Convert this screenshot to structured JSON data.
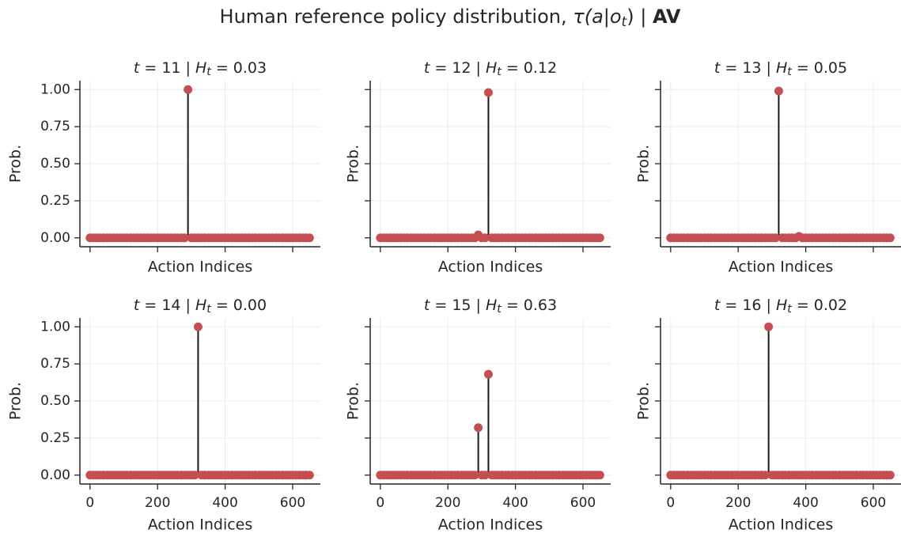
{
  "title": [
    "Human reference policy distribution, ",
    "τ(a|o",
    "t",
    ") | ",
    "AV"
  ],
  "chart_data": [
    {
      "type": "stem",
      "title": [
        "t",
        " =  11 | ",
        "H",
        "t",
        " = 0.03"
      ],
      "xlabel": "Action Indices",
      "ylabel": "Prob.",
      "x": [
        0,
        10,
        20,
        30,
        40,
        50,
        60,
        70,
        80,
        90,
        100,
        110,
        120,
        130,
        140,
        150,
        160,
        170,
        180,
        190,
        200,
        210,
        220,
        230,
        240,
        250,
        260,
        270,
        280,
        290,
        300,
        310,
        320,
        330,
        340,
        350,
        360,
        370,
        380,
        390,
        400,
        410,
        420,
        430,
        440,
        450,
        460,
        470,
        480,
        490,
        500,
        510,
        520,
        530,
        540,
        550,
        560,
        570,
        580,
        590,
        600,
        610,
        620,
        630,
        640,
        650
      ],
      "values": [
        0,
        0,
        0,
        0,
        0,
        0,
        0,
        0,
        0,
        0,
        0,
        0,
        0,
        0,
        0,
        0,
        0,
        0,
        0,
        0,
        0,
        0,
        0,
        0,
        0,
        0,
        0,
        0,
        0,
        1.0,
        0,
        0,
        0,
        0,
        0,
        0,
        0,
        0,
        0,
        0,
        0,
        0,
        0,
        0,
        0,
        0,
        0,
        0,
        0,
        0,
        0,
        0,
        0,
        0,
        0,
        0,
        0,
        0,
        0,
        0,
        0,
        0,
        0,
        0,
        0,
        0
      ],
      "color": "#c44e52",
      "stem_color": "#1a1a1a",
      "xlim": [
        -30,
        682
      ],
      "ylim": [
        -0.06,
        1.06
      ],
      "xticks": [
        0,
        200,
        400,
        600
      ],
      "yticks": [
        {
          "value": 0,
          "label": "0.00"
        },
        {
          "value": 0.25,
          "label": "0.25"
        },
        {
          "value": 0.5,
          "label": "0.50"
        },
        {
          "value": 0.75,
          "label": "0.75"
        },
        {
          "value": 1,
          "label": "1.00"
        }
      ],
      "grid": true,
      "x_tick_labels": false,
      "y_tick_labels": true
    },
    {
      "type": "stem",
      "title": [
        "t",
        " =  12 | ",
        "H",
        "t",
        " = 0.12"
      ],
      "xlabel": "Action Indices",
      "ylabel": "Prob.",
      "x": [
        0,
        10,
        20,
        30,
        40,
        50,
        60,
        70,
        80,
        90,
        100,
        110,
        120,
        130,
        140,
        150,
        160,
        170,
        180,
        190,
        200,
        210,
        220,
        230,
        240,
        250,
        260,
        270,
        280,
        290,
        300,
        310,
        320,
        330,
        340,
        350,
        360,
        370,
        380,
        390,
        400,
        410,
        420,
        430,
        440,
        450,
        460,
        470,
        480,
        490,
        500,
        510,
        520,
        530,
        540,
        550,
        560,
        570,
        580,
        590,
        600,
        610,
        620,
        630,
        640,
        650
      ],
      "values": [
        0,
        0,
        0,
        0,
        0,
        0,
        0,
        0,
        0,
        0,
        0,
        0,
        0,
        0,
        0,
        0,
        0,
        0,
        0,
        0,
        0,
        0,
        0,
        0,
        0,
        0,
        0,
        0,
        0,
        0.02,
        0,
        0,
        0.98,
        0,
        0,
        0,
        0,
        0,
        0,
        0,
        0,
        0,
        0,
        0,
        0,
        0,
        0,
        0,
        0,
        0,
        0,
        0,
        0,
        0,
        0,
        0,
        0,
        0,
        0,
        0,
        0,
        0,
        0,
        0,
        0,
        0
      ],
      "color": "#c44e52",
      "stem_color": "#1a1a1a",
      "xlim": [
        -30,
        682
      ],
      "ylim": [
        -0.06,
        1.06
      ],
      "xticks": [
        0,
        200,
        400,
        600
      ],
      "yticks": [
        0,
        0.25,
        0.5,
        0.75,
        1
      ],
      "grid": true,
      "x_tick_labels": false,
      "y_tick_labels": false
    },
    {
      "type": "stem",
      "title": [
        "t",
        " =  13 | ",
        "H",
        "t",
        " = 0.05"
      ],
      "xlabel": "Action Indices",
      "ylabel": "Prob.",
      "x": [
        0,
        10,
        20,
        30,
        40,
        50,
        60,
        70,
        80,
        90,
        100,
        110,
        120,
        130,
        140,
        150,
        160,
        170,
        180,
        190,
        200,
        210,
        220,
        230,
        240,
        250,
        260,
        270,
        280,
        290,
        300,
        310,
        320,
        330,
        340,
        350,
        360,
        370,
        380,
        390,
        400,
        410,
        420,
        430,
        440,
        450,
        460,
        470,
        480,
        490,
        500,
        510,
        520,
        530,
        540,
        550,
        560,
        570,
        580,
        590,
        600,
        610,
        620,
        630,
        640,
        650
      ],
      "values": [
        0,
        0,
        0,
        0,
        0,
        0,
        0,
        0,
        0,
        0,
        0,
        0,
        0,
        0,
        0,
        0,
        0,
        0,
        0,
        0,
        0,
        0,
        0,
        0,
        0,
        0,
        0,
        0,
        0,
        0,
        0,
        0,
        0.99,
        0,
        0,
        0,
        0,
        0,
        0.01,
        0,
        0,
        0,
        0,
        0,
        0,
        0,
        0,
        0,
        0,
        0,
        0,
        0,
        0,
        0,
        0,
        0,
        0,
        0,
        0,
        0,
        0,
        0,
        0,
        0,
        0,
        0
      ],
      "color": "#c44e52",
      "stem_color": "#1a1a1a",
      "xlim": [
        -30,
        682
      ],
      "ylim": [
        -0.06,
        1.06
      ],
      "xticks": [
        0,
        200,
        400,
        600
      ],
      "yticks": [
        0,
        0.25,
        0.5,
        0.75,
        1
      ],
      "grid": true,
      "x_tick_labels": false,
      "y_tick_labels": false
    },
    {
      "type": "stem",
      "title": [
        "t",
        " =  14 | ",
        "H",
        "t",
        " = 0.00"
      ],
      "xlabel": "Action Indices",
      "ylabel": "Prob.",
      "x": [
        0,
        10,
        20,
        30,
        40,
        50,
        60,
        70,
        80,
        90,
        100,
        110,
        120,
        130,
        140,
        150,
        160,
        170,
        180,
        190,
        200,
        210,
        220,
        230,
        240,
        250,
        260,
        270,
        280,
        290,
        300,
        310,
        320,
        330,
        340,
        350,
        360,
        370,
        380,
        390,
        400,
        410,
        420,
        430,
        440,
        450,
        460,
        470,
        480,
        490,
        500,
        510,
        520,
        530,
        540,
        550,
        560,
        570,
        580,
        590,
        600,
        610,
        620,
        630,
        640,
        650
      ],
      "values": [
        0,
        0,
        0,
        0,
        0,
        0,
        0,
        0,
        0,
        0,
        0,
        0,
        0,
        0,
        0,
        0,
        0,
        0,
        0,
        0,
        0,
        0,
        0,
        0,
        0,
        0,
        0,
        0,
        0,
        0,
        0,
        0,
        1.0,
        0,
        0,
        0,
        0,
        0,
        0,
        0,
        0,
        0,
        0,
        0,
        0,
        0,
        0,
        0,
        0,
        0,
        0,
        0,
        0,
        0,
        0,
        0,
        0,
        0,
        0,
        0,
        0,
        0,
        0,
        0,
        0,
        0
      ],
      "color": "#c44e52",
      "stem_color": "#1a1a1a",
      "xlim": [
        -30,
        682
      ],
      "ylim": [
        -0.06,
        1.06
      ],
      "xticks": [
        0,
        200,
        400,
        600
      ],
      "yticks": [
        {
          "value": 0,
          "label": "0.00"
        },
        {
          "value": 0.25,
          "label": "0.25"
        },
        {
          "value": 0.5,
          "label": "0.50"
        },
        {
          "value": 0.75,
          "label": "0.75"
        },
        {
          "value": 1,
          "label": "1.00"
        }
      ],
      "grid": true,
      "x_tick_labels": true,
      "y_tick_labels": true
    },
    {
      "type": "stem",
      "title": [
        "t",
        " =  15 | ",
        "H",
        "t",
        " = 0.63"
      ],
      "xlabel": "Action Indices",
      "ylabel": "Prob.",
      "x": [
        0,
        10,
        20,
        30,
        40,
        50,
        60,
        70,
        80,
        90,
        100,
        110,
        120,
        130,
        140,
        150,
        160,
        170,
        180,
        190,
        200,
        210,
        220,
        230,
        240,
        250,
        260,
        270,
        280,
        290,
        300,
        310,
        320,
        330,
        340,
        350,
        360,
        370,
        380,
        390,
        400,
        410,
        420,
        430,
        440,
        450,
        460,
        470,
        480,
        490,
        500,
        510,
        520,
        530,
        540,
        550,
        560,
        570,
        580,
        590,
        600,
        610,
        620,
        630,
        640,
        650
      ],
      "values": [
        0,
        0,
        0,
        0,
        0,
        0,
        0,
        0,
        0,
        0,
        0,
        0,
        0,
        0,
        0,
        0,
        0,
        0,
        0,
        0,
        0,
        0,
        0,
        0,
        0,
        0,
        0,
        0,
        0,
        0.32,
        0,
        0,
        0.68,
        0,
        0,
        0,
        0,
        0,
        0,
        0,
        0,
        0,
        0,
        0,
        0,
        0,
        0,
        0,
        0,
        0,
        0,
        0,
        0,
        0,
        0,
        0,
        0,
        0,
        0,
        0,
        0,
        0,
        0,
        0,
        0,
        0
      ],
      "color": "#c44e52",
      "stem_color": "#1a1a1a",
      "xlim": [
        -30,
        682
      ],
      "ylim": [
        -0.06,
        1.06
      ],
      "xticks": [
        0,
        200,
        400,
        600
      ],
      "yticks": [
        0,
        0.25,
        0.5,
        0.75,
        1
      ],
      "grid": true,
      "x_tick_labels": true,
      "y_tick_labels": false
    },
    {
      "type": "stem",
      "title": [
        "t",
        " =  16 | ",
        "H",
        "t",
        " = 0.02"
      ],
      "xlabel": "Action Indices",
      "ylabel": "Prob.",
      "x": [
        0,
        10,
        20,
        30,
        40,
        50,
        60,
        70,
        80,
        90,
        100,
        110,
        120,
        130,
        140,
        150,
        160,
        170,
        180,
        190,
        200,
        210,
        220,
        230,
        240,
        250,
        260,
        270,
        280,
        290,
        300,
        310,
        320,
        330,
        340,
        350,
        360,
        370,
        380,
        390,
        400,
        410,
        420,
        430,
        440,
        450,
        460,
        470,
        480,
        490,
        500,
        510,
        520,
        530,
        540,
        550,
        560,
        570,
        580,
        590,
        600,
        610,
        620,
        630,
        640,
        650
      ],
      "values": [
        0,
        0,
        0,
        0,
        0,
        0,
        0,
        0,
        0,
        0,
        0,
        0,
        0,
        0,
        0,
        0,
        0,
        0,
        0,
        0,
        0,
        0,
        0,
        0,
        0,
        0,
        0,
        0,
        0,
        1.0,
        0,
        0,
        0,
        0,
        0,
        0,
        0,
        0,
        0,
        0,
        0,
        0,
        0,
        0,
        0,
        0,
        0,
        0,
        0,
        0,
        0,
        0,
        0,
        0,
        0,
        0,
        0,
        0,
        0,
        0,
        0,
        0,
        0,
        0,
        0,
        0
      ],
      "color": "#c44e52",
      "stem_color": "#1a1a1a",
      "xlim": [
        -30,
        682
      ],
      "ylim": [
        -0.06,
        1.06
      ],
      "xticks": [
        0,
        200,
        400,
        600
      ],
      "yticks": [
        0,
        0.25,
        0.5,
        0.75,
        1
      ],
      "grid": true,
      "x_tick_labels": true,
      "y_tick_labels": false
    }
  ]
}
